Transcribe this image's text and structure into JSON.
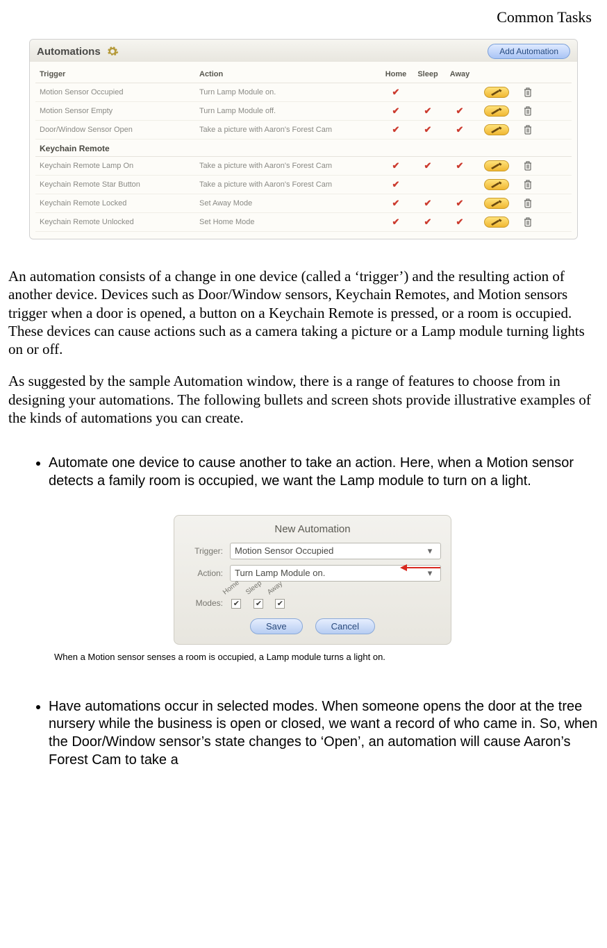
{
  "header": {
    "title": "Common Tasks"
  },
  "automations_panel": {
    "title": "Automations",
    "add_button": "Add Automation",
    "columns": {
      "trigger": "Trigger",
      "action": "Action",
      "home": "Home",
      "sleep": "Sleep",
      "away": "Away"
    },
    "group1_rows": [
      {
        "trigger": "Motion Sensor Occupied",
        "action": "Turn Lamp Module on.",
        "home": "✔",
        "sleep": "",
        "away": ""
      },
      {
        "trigger": "Motion Sensor Empty",
        "action": "Turn Lamp Module off.",
        "home": "✔",
        "sleep": "✔",
        "away": "✔"
      },
      {
        "trigger": "Door/Window Sensor Open",
        "action": "Take a picture with Aaron's Forest Cam",
        "home": "✔",
        "sleep": "✔",
        "away": "✔"
      }
    ],
    "group2_label": "Keychain Remote",
    "group2_rows": [
      {
        "trigger": "Keychain Remote Lamp On",
        "action": "Take a picture with Aaron's Forest Cam",
        "home": "✔",
        "sleep": "✔",
        "away": "✔"
      },
      {
        "trigger": "Keychain Remote Star Button",
        "action": "Take a picture with Aaron's Forest Cam",
        "home": "✔",
        "sleep": "",
        "away": ""
      },
      {
        "trigger": "Keychain Remote Locked",
        "action": "Set Away Mode",
        "home": "✔",
        "sleep": "✔",
        "away": "✔"
      },
      {
        "trigger": "Keychain Remote Unlocked",
        "action": "Set Home Mode",
        "home": "✔",
        "sleep": "✔",
        "away": "✔"
      }
    ],
    "colors": {
      "panel_bg": "#efeeea",
      "check_color": "#cc3b2f",
      "edit_bg_top": "#ffe27a",
      "edit_bg_bottom": "#f0b733",
      "button_bg_top": "#dfeaff",
      "button_bg_bottom": "#a9c4f5"
    }
  },
  "para1": "An automation consists of a change in one device (called a ‘trigger’) and the resulting action of another device. Devices such as Door/Window sensors, Keychain Remotes, and Motion sensors trigger when a door is opened, a button on a Keychain Remote is pressed, or a room is occupied. These devices can cause actions such as a camera taking a picture or a Lamp module turning lights on or off.",
  "para2": "As suggested by the sample Automation window, there is a range of features to choose from in designing your automations. The following bullets and screen shots provide illustrative examples of the kinds of automations you can create.",
  "bullet1": "Automate one device to cause another to take an action. Here, when a Motion sensor detects a family room is occupied, we want the Lamp module to turn on a light.",
  "dialog": {
    "title": "New Automation",
    "trigger_label": "Trigger:",
    "trigger_value": "Motion Sensor Occupied",
    "action_label": "Action:",
    "action_value": "Turn Lamp Module on.",
    "modes_label": "Modes:",
    "modes": {
      "home": "Home",
      "sleep": "Sleep",
      "away": "Away"
    },
    "mode_checks": {
      "home": "✔",
      "sleep": "✔",
      "away": "✔"
    },
    "save": "Save",
    "cancel": "Cancel"
  },
  "caption1": "When a Motion sensor senses a room is occupied, a Lamp module turns a light on.",
  "bullet2": "Have automations occur in selected modes. When someone opens the door at the tree nursery while the business is open or closed, we want a record of who came in. So, when the Door/Window sensor’s state changes to ‘Open’, an automation will cause Aaron’s Forest Cam to take a"
}
